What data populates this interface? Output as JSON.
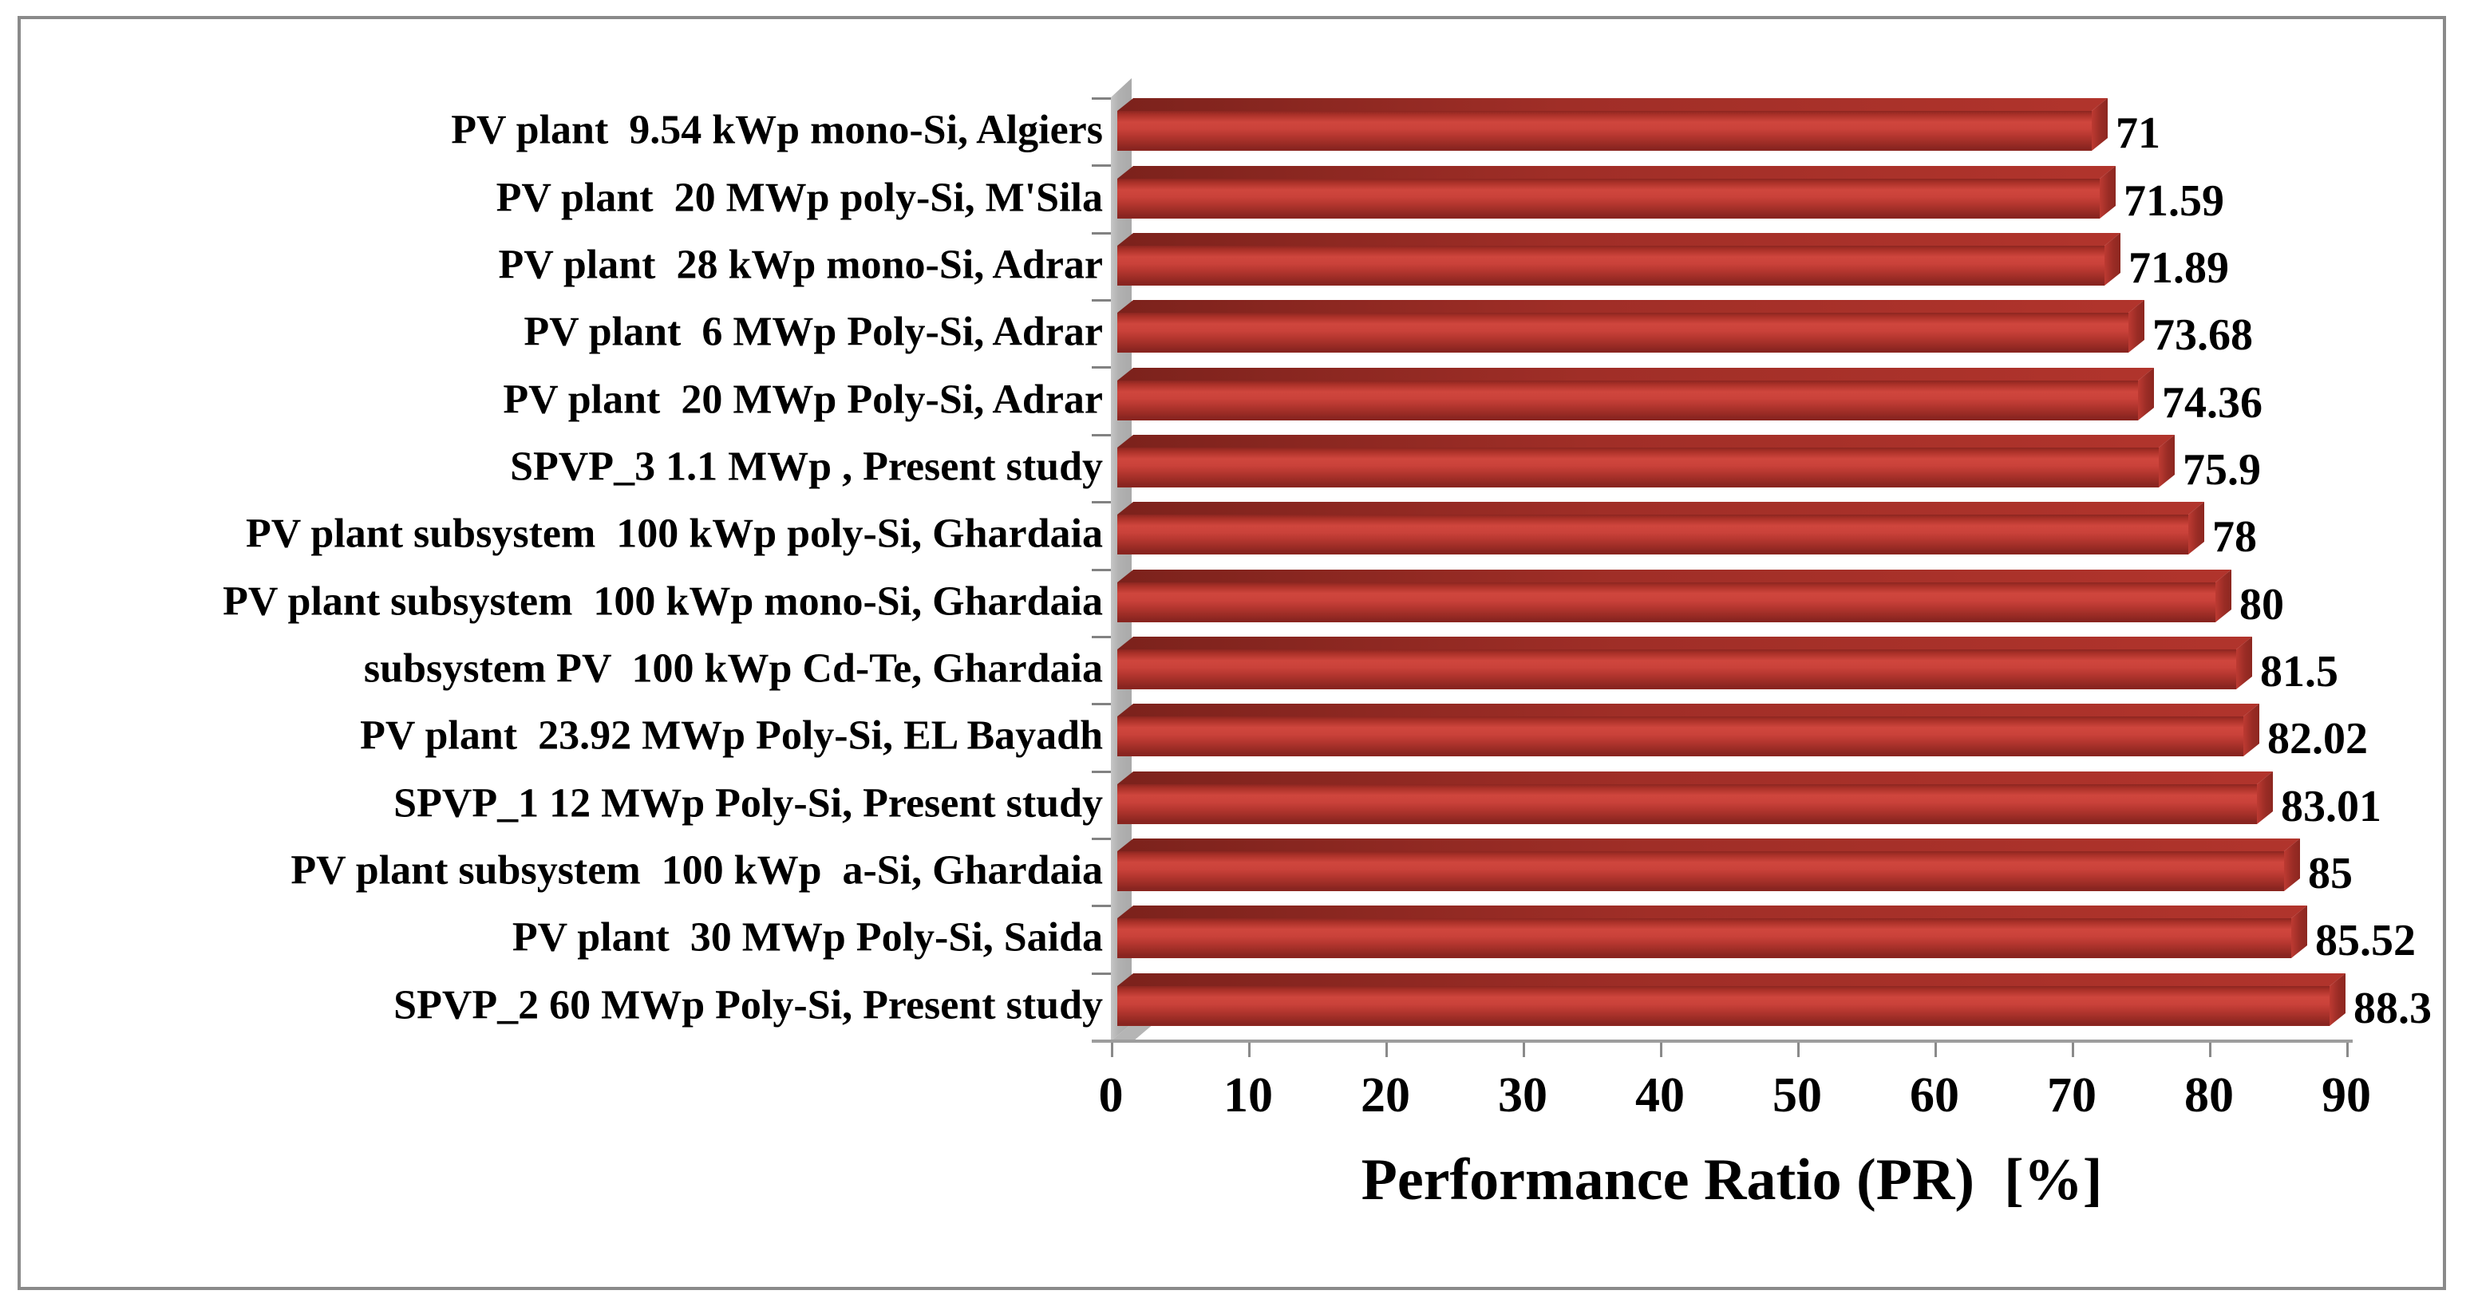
{
  "chart_data": {
    "type": "bar",
    "orientation": "horizontal",
    "title": "",
    "xlabel": "Performance Ratio (PR)  [%]",
    "ylabel": "",
    "xlim": [
      0,
      90
    ],
    "x_ticks": [
      "0",
      "10",
      "20",
      "30",
      "40",
      "50",
      "60",
      "70",
      "80",
      "90"
    ],
    "grid": false,
    "legend": false,
    "bar_color": "#c23b32",
    "wall_color": "#b5b5b5",
    "categories": [
      "PV plant  9.54 kWp mono-Si, Algiers",
      "PV plant  20 MWp poly-Si, M'Sila",
      "PV plant  28 kWp mono-Si, Adrar",
      "PV plant  6 MWp Poly-Si, Adrar",
      "PV plant  20 MWp Poly-Si, Adrar",
      "SPVP_3 1.1 MWp , Present study",
      "PV plant subsystem  100 kWp poly-Si, Ghardaia",
      "PV plant subsystem  100 kWp mono-Si, Ghardaia",
      "subsystem PV  100 kWp Cd-Te, Ghardaia",
      "PV plant  23.92 MWp Poly-Si, EL Bayadh",
      "SPVP_1 12 MWp Poly-Si, Present study",
      "PV plant subsystem  100 kWp  a-Si, Ghardaia",
      "PV plant  30 MWp Poly-Si, Saida",
      "SPVP_2 60 MWp Poly-Si, Present study"
    ],
    "values": [
      71,
      71.59,
      71.89,
      73.68,
      74.36,
      75.9,
      78,
      80,
      81.5,
      82.02,
      83.01,
      85,
      85.52,
      88.3
    ],
    "value_labels": [
      "71",
      "71.59",
      "71.89",
      "73.68",
      "74.36",
      "75.9",
      "78",
      "80",
      "81.5",
      "82.02",
      "83.01",
      "85",
      "85.52",
      "88.3"
    ]
  }
}
